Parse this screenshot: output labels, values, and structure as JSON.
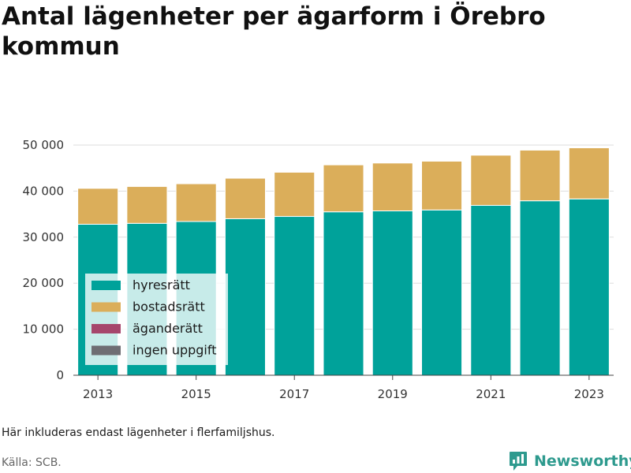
{
  "title": "Antal lägenheter per ägarform i Örebro kommun",
  "note": "Här inkluderas endast lägenheter i flerfamiljshus.",
  "source": "Källa: SCB.",
  "brand": "Newsworthy",
  "colors": {
    "hyresratt": "#00A29A",
    "bostadsratt": "#DBAE5A",
    "aganderatt": "#A6466C",
    "ingen_uppgift": "#6E6E73",
    "grid": "#dddddd",
    "brand": "#2e9a8e"
  },
  "chart_data": {
    "type": "bar",
    "stacked": true,
    "categories": [
      "2013",
      "2014",
      "2015",
      "2016",
      "2017",
      "2018",
      "2019",
      "2020",
      "2021",
      "2022",
      "2023"
    ],
    "series": [
      {
        "name": "hyresrätt",
        "color": "#00A29A",
        "values": [
          32800,
          33000,
          33400,
          34000,
          34500,
          35500,
          35700,
          35900,
          36900,
          37900,
          38300
        ]
      },
      {
        "name": "bostadsrätt",
        "color": "#DBAE5A",
        "values": [
          7800,
          8000,
          8200,
          8800,
          9600,
          10200,
          10400,
          10600,
          10900,
          11000,
          11100
        ]
      },
      {
        "name": "äganderätt",
        "color": "#A6466C",
        "values": [
          0,
          0,
          0,
          0,
          0,
          0,
          0,
          0,
          0,
          0,
          0
        ]
      },
      {
        "name": "ingen uppgift",
        "color": "#6E6E73",
        "values": [
          0,
          0,
          0,
          0,
          0,
          0,
          0,
          0,
          0,
          0,
          0
        ]
      }
    ],
    "y_ticks": [
      0,
      10000,
      20000,
      30000,
      40000,
      50000
    ],
    "y_tick_labels": [
      "0",
      "10 000",
      "20 000",
      "30 000",
      "40 000",
      "50 000"
    ],
    "x_tick_labels": [
      "2013",
      "2015",
      "2017",
      "2019",
      "2021",
      "2023"
    ],
    "ylim": [
      0,
      50000
    ],
    "grid": true,
    "legend_position": "bottom-left inside"
  }
}
